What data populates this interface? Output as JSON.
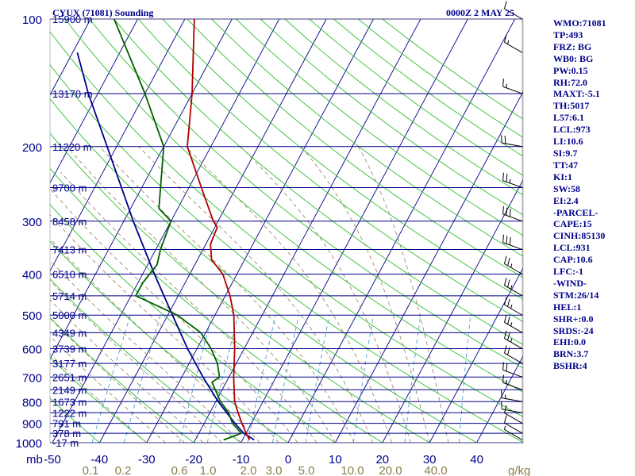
{
  "header": {
    "title": "CYUX (71081) Sounding",
    "datetime": "0000Z  2 MAY 25"
  },
  "stats": [
    "WMO:71081",
    "TP:493",
    "FRZ: BG",
    "WB0: BG",
    "PW:0.15",
    "RH:72.0",
    "MAXT:-5.1",
    "TH:5017",
    "L57:6.1",
    "LCL:973",
    "LI:10.6",
    "SI:9.7",
    "TT:47",
    "KI:1",
    "SW:58",
    "EI:2.4",
    "-PARCEL-",
    "CAPE:15",
    "CINH:85130",
    "LCL:931",
    "CAP:10.6",
    "LFC:-1",
    "-WIND-",
    "STM:26/14",
    "HEL:1",
    "SHR+:0.0",
    "SRDS:-24",
    "EHI:0.0",
    "BRN:3.7",
    "BSHR:4"
  ],
  "colors": {
    "background": "#ffffff",
    "isobar": "#00008b",
    "isotherm": "#00008b",
    "dry_adiabat": "#2fbf2f",
    "moist_adiabat": "#a08a6a",
    "mixing_ratio": "#4aa0d0",
    "temperature": "#b00000",
    "dewpoint": "#006000",
    "parcel": "#00008b",
    "text": "#00008b",
    "mixing_label": "#8b7d4a"
  },
  "chart_data": {
    "type": "skew-t",
    "title": "CYUX (71081) Sounding",
    "pressure_axis_label": "mb",
    "mixing_ratio_unit": "g/kg",
    "ylim": [
      1000,
      100
    ],
    "xlim": [
      -50,
      40
    ],
    "y_scale": "log",
    "pressure_ticks": [
      {
        "p": 100,
        "label": "100"
      },
      {
        "p": 200,
        "label": "200"
      },
      {
        "p": 300,
        "label": "300"
      },
      {
        "p": 400,
        "label": "400"
      },
      {
        "p": 500,
        "label": "500"
      },
      {
        "p": 600,
        "label": "600"
      },
      {
        "p": 700,
        "label": "700"
      },
      {
        "p": 800,
        "label": "800"
      },
      {
        "p": 900,
        "label": "900"
      },
      {
        "p": 1000,
        "label": "1000"
      }
    ],
    "temperature_ticks": [
      {
        "t": -50,
        "label": "-50"
      },
      {
        "t": -40,
        "label": "-40"
      },
      {
        "t": -30,
        "label": "-30"
      },
      {
        "t": -20,
        "label": "-20"
      },
      {
        "t": -10,
        "label": "-10"
      },
      {
        "t": 0,
        "label": "0"
      },
      {
        "t": 10,
        "label": "10"
      },
      {
        "t": 20,
        "label": "20"
      },
      {
        "t": 30,
        "label": "30"
      },
      {
        "t": 40,
        "label": "40"
      }
    ],
    "mixing_ratio_labels": [
      "0.1",
      "0.2",
      "0.6",
      "1.0",
      "2.0",
      "3.0",
      "5.0",
      "10.0",
      "20.0",
      "40.0"
    ],
    "height_labels": [
      {
        "p": 100,
        "label": "15900 m"
      },
      {
        "p": 150,
        "label": "13170 m"
      },
      {
        "p": 200,
        "label": "11220 m"
      },
      {
        "p": 250,
        "label": "9700 m"
      },
      {
        "p": 300,
        "label": "8458 m"
      },
      {
        "p": 350,
        "label": "7413 m"
      },
      {
        "p": 400,
        "label": "6510 m"
      },
      {
        "p": 450,
        "label": "5714 m"
      },
      {
        "p": 500,
        "label": "5000 m"
      },
      {
        "p": 550,
        "label": "4349 m"
      },
      {
        "p": 600,
        "label": "3739 m"
      },
      {
        "p": 650,
        "label": "3177 m"
      },
      {
        "p": 700,
        "label": "2651 m"
      },
      {
        "p": 750,
        "label": "2149 m"
      },
      {
        "p": 800,
        "label": "1673 m"
      },
      {
        "p": 850,
        "label": "1222 m"
      },
      {
        "p": 900,
        "label": "791 m"
      },
      {
        "p": 950,
        "label": "378 m"
      },
      {
        "p": 1000,
        "label": "-17 m"
      }
    ],
    "temperature": [
      [
        985,
        -8.5
      ],
      [
        950,
        -10
      ],
      [
        900,
        -12
      ],
      [
        850,
        -14
      ],
      [
        800,
        -16
      ],
      [
        700,
        -19
      ],
      [
        600,
        -22
      ],
      [
        500,
        -26
      ],
      [
        450,
        -29
      ],
      [
        400,
        -33
      ],
      [
        370,
        -37
      ],
      [
        340,
        -39
      ],
      [
        310,
        -39.5
      ],
      [
        300,
        -41
      ],
      [
        260,
        -46
      ],
      [
        200,
        -55
      ],
      [
        150,
        -60
      ],
      [
        100,
        -68
      ]
    ],
    "dewpoint": [
      [
        985,
        -14
      ],
      [
        950,
        -11
      ],
      [
        900,
        -14
      ],
      [
        850,
        -16
      ],
      [
        800,
        -19
      ],
      [
        720,
        -23
      ],
      [
        700,
        -22
      ],
      [
        650,
        -24
      ],
      [
        600,
        -27
      ],
      [
        550,
        -31
      ],
      [
        500,
        -38
      ],
      [
        450,
        -49
      ],
      [
        420,
        -49
      ],
      [
        380,
        -48
      ],
      [
        350,
        -49
      ],
      [
        300,
        -50
      ],
      [
        280,
        -54
      ],
      [
        200,
        -60
      ],
      [
        150,
        -70
      ],
      [
        100,
        -85
      ]
    ],
    "parcel": [
      [
        985,
        -7.5
      ],
      [
        950,
        -10.5
      ],
      [
        900,
        -13.5
      ],
      [
        800,
        -19.5
      ],
      [
        700,
        -25.5
      ],
      [
        600,
        -32
      ],
      [
        500,
        -39
      ],
      [
        400,
        -47.5
      ],
      [
        300,
        -58
      ],
      [
        200,
        -72
      ],
      [
        150,
        -82
      ],
      [
        120,
        -89
      ]
    ],
    "wind_barbs": [
      {
        "p": 985,
        "dir": 300,
        "spd": 5
      },
      {
        "p": 950,
        "dir": 300,
        "spd": 10
      },
      {
        "p": 900,
        "dir": 300,
        "spd": 10
      },
      {
        "p": 850,
        "dir": 280,
        "spd": 10
      },
      {
        "p": 800,
        "dir": 280,
        "spd": 15
      },
      {
        "p": 750,
        "dir": 290,
        "spd": 15
      },
      {
        "p": 700,
        "dir": 290,
        "spd": 20
      },
      {
        "p": 650,
        "dir": 300,
        "spd": 20
      },
      {
        "p": 600,
        "dir": 300,
        "spd": 25
      },
      {
        "p": 550,
        "dir": 300,
        "spd": 25
      },
      {
        "p": 500,
        "dir": 300,
        "spd": 25
      },
      {
        "p": 450,
        "dir": 300,
        "spd": 25
      },
      {
        "p": 400,
        "dir": 300,
        "spd": 25
      },
      {
        "p": 350,
        "dir": 290,
        "spd": 30
      },
      {
        "p": 300,
        "dir": 290,
        "spd": 30
      },
      {
        "p": 250,
        "dir": 290,
        "spd": 25
      },
      {
        "p": 200,
        "dir": 280,
        "spd": 20
      },
      {
        "p": 150,
        "dir": 290,
        "spd": 15
      },
      {
        "p": 120,
        "dir": 300,
        "spd": 15
      },
      {
        "p": 100,
        "dir": 300,
        "spd": 10
      }
    ]
  }
}
